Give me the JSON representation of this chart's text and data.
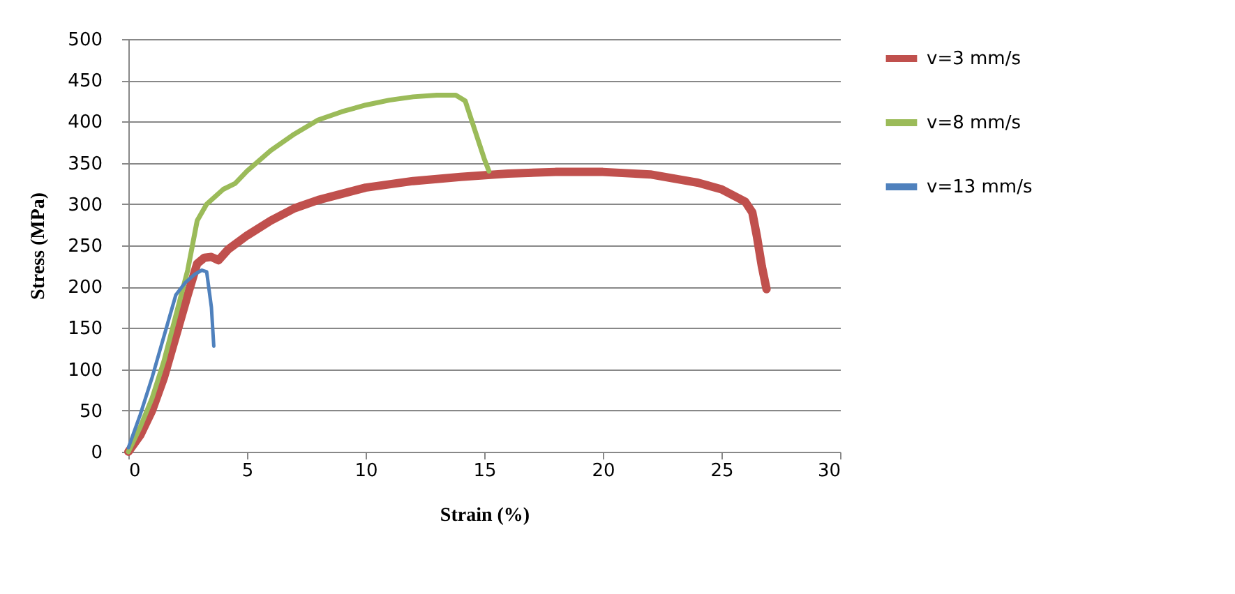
{
  "chart_data": {
    "type": "line",
    "xlabel": "Strain (%)",
    "ylabel": "Stress (MPa)",
    "xlim": [
      0,
      30
    ],
    "xticks": [
      0,
      5,
      10,
      15,
      20,
      25,
      30
    ],
    "ylim": [
      0,
      500
    ],
    "yticks": [
      0,
      50,
      100,
      150,
      200,
      250,
      300,
      350,
      400,
      450,
      500
    ],
    "grid": "y",
    "legend": "right",
    "marker": "none",
    "line_style": "solid",
    "series": [
      {
        "name": "v=3 mm/s",
        "color": "#c0504d",
        "x": [
          0,
          0.5,
          1,
          1.5,
          2,
          2.5,
          2.9,
          3.2,
          3.5,
          3.8,
          4.2,
          5,
          6,
          7,
          8,
          10,
          12,
          14,
          16,
          18,
          20,
          22,
          24,
          25,
          26,
          26.3,
          26.5,
          26.7,
          26.9
        ],
        "values": [
          0,
          20,
          50,
          90,
          140,
          190,
          228,
          235,
          236,
          232,
          245,
          262,
          280,
          295,
          305,
          320,
          328,
          333,
          337,
          339,
          339,
          336,
          326,
          318,
          303,
          290,
          260,
          225,
          197
        ]
      },
      {
        "name": "v=8 mm/s",
        "color": "#9bbb59",
        "x": [
          0,
          0.5,
          1,
          1.5,
          2,
          2.5,
          2.9,
          3.3,
          4,
          4.5,
          5,
          6,
          7,
          8,
          9,
          10,
          11,
          12,
          13,
          13.8,
          14.2,
          14.6,
          15,
          15.2
        ],
        "values": [
          0,
          30,
          65,
          110,
          165,
          220,
          280,
          300,
          318,
          325,
          340,
          365,
          385,
          402,
          412,
          420,
          426,
          430,
          432,
          432,
          425,
          390,
          355,
          340
        ]
      },
      {
        "name": "v=13 mm/s",
        "color": "#4f81bd",
        "x": [
          0,
          0.5,
          1,
          1.5,
          2,
          2.4,
          2.8,
          3.1,
          3.3,
          3.5,
          3.6
        ],
        "values": [
          5,
          45,
          90,
          140,
          190,
          205,
          215,
          220,
          218,
          175,
          128
        ]
      }
    ]
  }
}
